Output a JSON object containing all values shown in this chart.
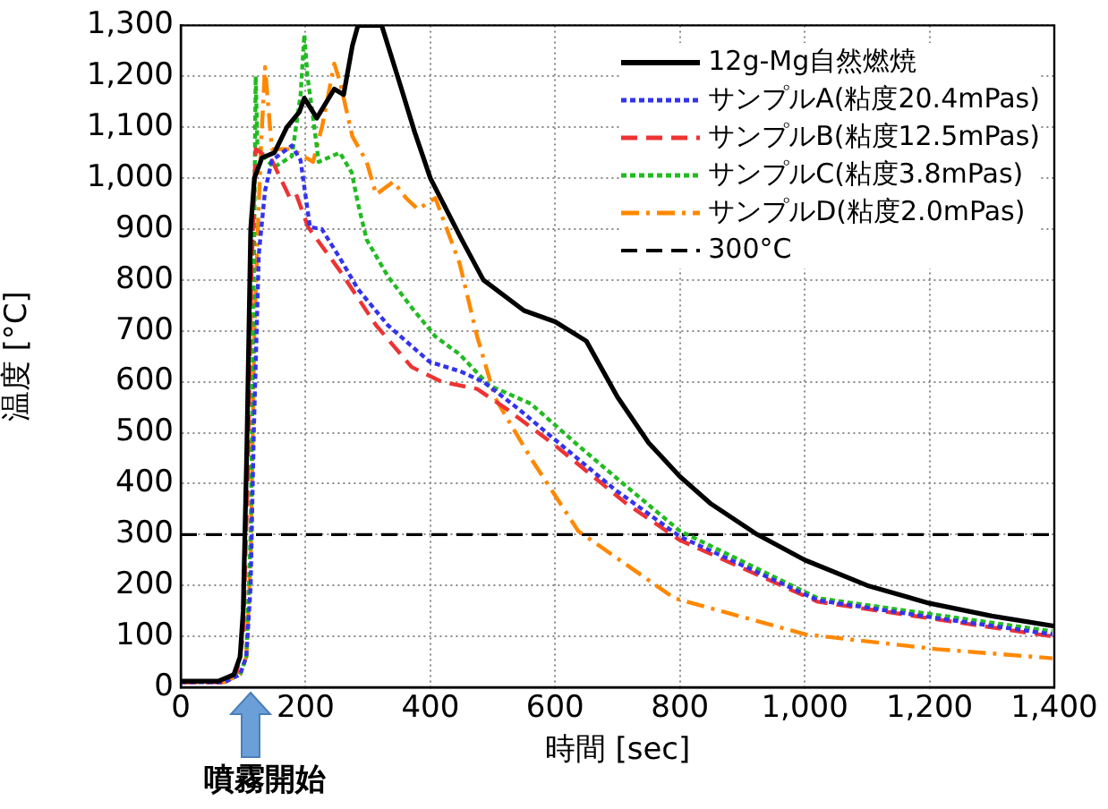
{
  "chart_data": {
    "type": "line",
    "xlabel": "時間 [sec]",
    "ylabel": "温度 [°C]",
    "xlim": [
      0,
      1400
    ],
    "xticks": [
      0,
      200,
      400,
      600,
      800,
      {
        "value": 1000,
        "label": "1,000"
      },
      {
        "value": 1200,
        "label": "1,200"
      },
      {
        "value": 1400,
        "label": "1,400"
      }
    ],
    "ylim": [
      0,
      1300
    ],
    "yticks": [
      0,
      100,
      200,
      300,
      400,
      500,
      600,
      700,
      800,
      900,
      {
        "value": 1000,
        "label": "1,000"
      },
      {
        "value": 1100,
        "label": "1,100"
      },
      {
        "value": 1200,
        "label": "1,200"
      },
      {
        "value": 1300,
        "label": "1,300"
      }
    ],
    "grid": true,
    "legend": "top right",
    "marker": "none",
    "series": [
      {
        "name": "12g-Mg自然燃焼",
        "color": "#000000",
        "line_style": "solid",
        "x": [
          0,
          60,
          85,
          95,
          100,
          106,
          112,
          118,
          130,
          150,
          170,
          190,
          198,
          218,
          246,
          261,
          275,
          284,
          300,
          322,
          350,
          375,
          400,
          450,
          485,
          550,
          600,
          650,
          700,
          750,
          800,
          850,
          924,
          1000,
          1100,
          1200,
          1300,
          1400
        ],
        "values": [
          12,
          12,
          25,
          60,
          150,
          480,
          900,
          1000,
          1040,
          1050,
          1100,
          1130,
          1157,
          1118,
          1175,
          1164,
          1260,
          1300,
          1300,
          1300,
          1190,
          1090,
          1000,
          880,
          800,
          740,
          718,
          680,
          570,
          480,
          414,
          360,
          300,
          250,
          200,
          165,
          140,
          120
        ]
      },
      {
        "name": "サンプルA(粘度20.4mPas)",
        "color": "#3333ee",
        "line_style": "dotted",
        "x": [
          0,
          70,
          95,
          105,
          112,
          117,
          125,
          135,
          146,
          178,
          192,
          207,
          226,
          255,
          284,
          332,
          399,
          447,
          485,
          542,
          600,
          695,
          800,
          1021,
          1211,
          1397
        ],
        "values": [
          10,
          10,
          25,
          60,
          200,
          500,
          850,
          975,
          1035,
          1064,
          1035,
          904,
          900,
          843,
          782,
          711,
          639,
          621,
          600,
          546,
          486,
          389,
          296,
          171,
          136,
          104
        ]
      },
      {
        "name": "サンプルB(粘度12.5mPas)",
        "color": "#ee3333",
        "line_style": "dashed",
        "x": [
          0,
          65,
          90,
          100,
          107,
          113,
          120,
          146,
          175,
          185,
          204,
          255,
          313,
          370,
          418,
          475,
          523,
          600,
          714,
          800,
          1021,
          1397
        ],
        "values": [
          10,
          10,
          30,
          100,
          400,
          800,
          1057,
          1035,
          961,
          968,
          904,
          818,
          711,
          629,
          600,
          586,
          546,
          475,
          361,
          289,
          168,
          100
        ]
      },
      {
        "name": "サンプルC(粘度3.8mPas)",
        "color": "#22bb22",
        "line_style": "dotted",
        "x": [
          95,
          105,
          112,
          117,
          120,
          123,
          149,
          178,
          192,
          198,
          203,
          211,
          221,
          255,
          274,
          284,
          298,
          332,
          370,
          408,
          447,
          494,
          561,
          637,
          705,
          800,
          1021,
          1397
        ],
        "values": [
          25,
          60,
          300,
          800,
          1200,
          1057,
          1021,
          1043,
          1164,
          1282,
          1200,
          1129,
          1032,
          1050,
          1011,
          950,
          879,
          807,
          746,
          689,
          654,
          593,
          557,
          475,
          404,
          307,
          175,
          110
        ]
      },
      {
        "name": "サンプルD(粘度2.0mPas)",
        "color": "#ff8800",
        "line_style": "dashdot",
        "x": [
          0,
          70,
          95,
          105,
          112,
          118,
          125,
          129,
          135,
          146,
          178,
          212,
          227,
          246,
          255,
          275,
          298,
          313,
          341,
          361,
          380,
          408,
          447,
          475,
          504,
          561,
          637,
          791,
          1001,
          1211,
          1397
        ],
        "values": [
          10,
          10,
          25,
          60,
          250,
          700,
          950,
          1075,
          1218,
          1057,
          1057,
          1032,
          1104,
          1225,
          1190,
          1082,
          1032,
          968,
          993,
          961,
          939,
          961,
          832,
          689,
          568,
          450,
          307,
          175,
          104,
          75,
          57
        ]
      }
    ],
    "ref_lines": [
      {
        "axis": "y",
        "value": 300,
        "label": "300°C",
        "color": "#000000",
        "line_style": "dashed"
      }
    ],
    "annotations": [
      "噴霧開始"
    ]
  }
}
